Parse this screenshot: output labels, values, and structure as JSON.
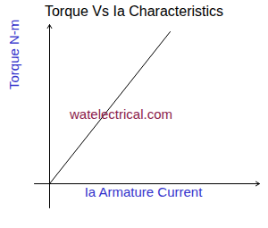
{
  "chart_data": {
    "type": "line",
    "title": "Torque Vs Ia Characteristics",
    "x_label": "Ia Armature Current",
    "y_label": "Torque N-m",
    "annotations": [
      "watelectrical.com"
    ],
    "x": [
      0,
      13.5
    ],
    "values": [
      0,
      17
    ],
    "color": "#000000",
    "xlim": [
      -1.7,
      23.5
    ],
    "ylim": [
      -2.7,
      17.8
    ],
    "xticks": [],
    "yticks": [],
    "tick_labels": false,
    "grid": false
  }
}
